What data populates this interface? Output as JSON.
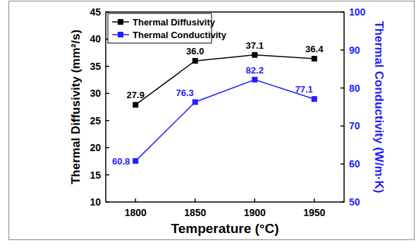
{
  "chart_data": {
    "type": "line",
    "x_label": "Temperature (°C)",
    "y_label": "Thermal Diffusivity (mm²/s)",
    "y2_label": "Thermal Conductivity (W/m·K)",
    "x": [
      1800,
      1850,
      1900,
      1950
    ],
    "xlim": [
      1775,
      1975
    ],
    "xticks": [
      1800,
      1850,
      1900,
      1950
    ],
    "ylim": [
      10,
      45
    ],
    "yticks": [
      10,
      15,
      20,
      25,
      30,
      35,
      40,
      45
    ],
    "y2lim": [
      50,
      100
    ],
    "y2ticks": [
      50,
      60,
      70,
      80,
      90,
      100
    ],
    "legend": "upper left",
    "data_labels": true,
    "series": [
      {
        "name": "Thermal Diffusivity",
        "color": "#000000",
        "marker": "square",
        "line_style": "solid",
        "values": [
          27.9,
          36.0,
          37.1,
          36.4
        ],
        "value_labels": [
          "27.9",
          "36.0",
          "37.1",
          "36.4"
        ]
      },
      {
        "name": "Thermal Conductivity",
        "color": "#1f1fff",
        "marker": "square",
        "line_style": "solid",
        "axis": "y2",
        "values": [
          60.8,
          76.3,
          82.2,
          77.1
        ],
        "value_labels": [
          "60.8",
          "76.3",
          "82.2",
          "77.1"
        ]
      }
    ]
  }
}
